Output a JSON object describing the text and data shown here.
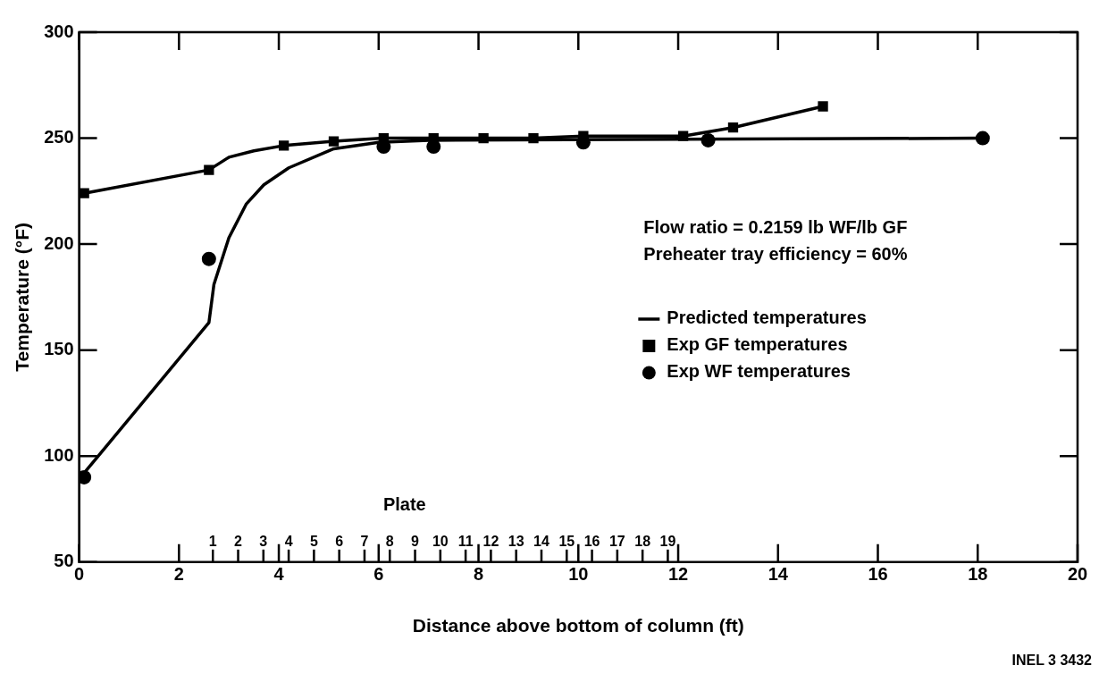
{
  "chart_data": {
    "type": "line",
    "xlabel": "Distance above bottom of column (ft)",
    "ylabel": "Temperature (°F)",
    "xlim": [
      0,
      20
    ],
    "xticks": [
      0,
      2,
      4,
      6,
      8,
      10,
      12,
      14,
      16,
      18,
      20
    ],
    "ylim": [
      50,
      300
    ],
    "yticks": [
      50,
      100,
      150,
      200,
      250,
      300
    ],
    "x2label": "Plate",
    "x2lim": [
      -4.29,
      35.21
    ],
    "x2ticks": [
      1,
      2,
      3,
      4,
      5,
      6,
      7,
      8,
      9,
      10,
      11,
      12,
      13,
      14,
      15,
      16,
      17,
      18,
      19
    ],
    "series": [
      {
        "name": "Predicted temperatures",
        "type": "line",
        "color": "#000000",
        "marker": "none",
        "x": [
          0.1,
          2.6,
          2.7,
          3.0,
          3.35,
          3.7,
          4.2,
          5.1,
          6.0,
          7.0,
          18.1
        ],
        "values": [
          92,
          163,
          181,
          203,
          219,
          228,
          236,
          245,
          248,
          249,
          250
        ]
      },
      {
        "type": "line",
        "color": "#000000",
        "marker": "none",
        "x": [
          0.1,
          2.6,
          3.0,
          3.5,
          4.1,
          5.1,
          6.1,
          7.1,
          8.1,
          9.1,
          10.1,
          12.1,
          13.1,
          14.9
        ],
        "values": [
          224,
          235,
          241,
          244,
          246.5,
          248.5,
          250,
          250,
          250,
          250,
          251,
          251,
          255,
          265
        ]
      },
      {
        "name": "Exp GF temperatures",
        "type": "scatter",
        "color": "#000000",
        "marker": "square",
        "x": [
          0.1,
          2.6,
          4.1,
          5.1,
          6.1,
          7.1,
          8.1,
          9.1,
          10.1,
          12.1,
          13.1,
          14.9
        ],
        "values": [
          224,
          235,
          246.5,
          248.5,
          250,
          250,
          250,
          250,
          251,
          251,
          255,
          265
        ]
      },
      {
        "name": "Exp WF temperatures",
        "type": "scatter",
        "color": "#000000",
        "marker": "circle",
        "x": [
          0.1,
          2.6,
          6.1,
          7.1,
          10.1,
          12.6,
          18.1
        ],
        "values": [
          90,
          193,
          246,
          246,
          248,
          249,
          250
        ]
      }
    ],
    "legend": "right",
    "grid": false,
    "annotations": [
      "Flow ratio = 0.2159 lb WF/lb GF",
      "Preheater tray efficiency = 60%",
      "INEL 3 3432"
    ]
  }
}
